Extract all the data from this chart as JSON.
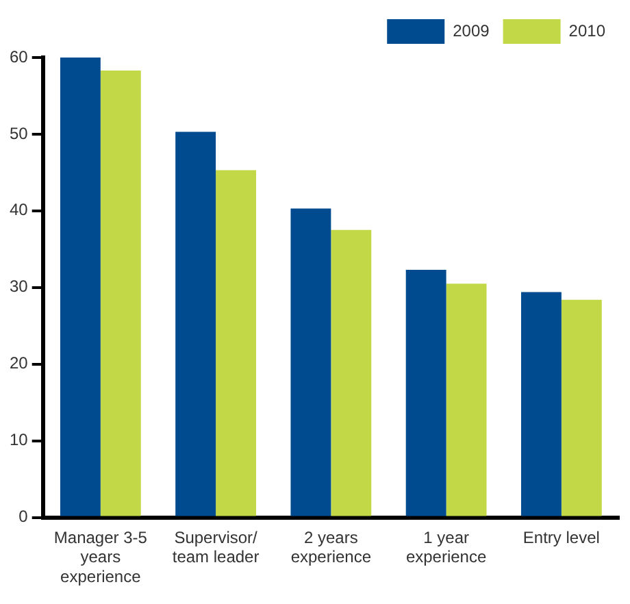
{
  "chart_data": {
    "type": "bar",
    "categories": [
      "Manager 3-5 years experience",
      "Supervisor/ team leader",
      "2 years experience",
      "1 year experience",
      "Entry level"
    ],
    "series": [
      {
        "name": "2009",
        "color": "#004a8f",
        "values": [
          60,
          50.3,
          40.3,
          32.3,
          29.4
        ]
      },
      {
        "name": "2010",
        "color": "#c2d846",
        "values": [
          58.3,
          45.3,
          37.5,
          30.5,
          28.4
        ]
      }
    ],
    "ylim": [
      0,
      60
    ],
    "yticks": [
      0,
      10,
      20,
      30,
      40,
      50,
      60
    ],
    "grid": false,
    "legend": "top right"
  }
}
